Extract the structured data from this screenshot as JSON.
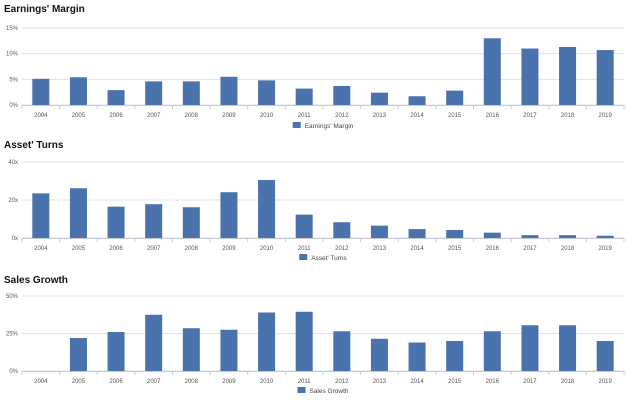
{
  "chart_data": [
    {
      "type": "bar",
      "title": "Earnings' Margin",
      "categories": [
        "2004",
        "2005",
        "2006",
        "2007",
        "2008",
        "2009",
        "2010",
        "2011",
        "2012",
        "2013",
        "2014",
        "2015",
        "2016",
        "2017",
        "2018",
        "2019"
      ],
      "series": [
        {
          "name": "Earnings' Margin",
          "values": [
            5.1,
            5.4,
            2.9,
            4.6,
            4.6,
            5.5,
            4.8,
            3.2,
            3.7,
            2.4,
            1.7,
            2.8,
            13.0,
            11.0,
            11.3,
            10.7
          ],
          "color": "#4a72ad"
        }
      ],
      "yticks": [
        0,
        5,
        10,
        15
      ],
      "ytick_labels": [
        "0%",
        "5%",
        "10%",
        "15%"
      ],
      "ylim": [
        0,
        15
      ],
      "grid": true,
      "legend_position": "bottom-center"
    },
    {
      "type": "bar",
      "title": "Asset' Turns",
      "categories": [
        "2004",
        "2005",
        "2006",
        "2007",
        "2008",
        "2009",
        "2010",
        "2011",
        "2012",
        "2013",
        "2014",
        "2015",
        "2016",
        "2017",
        "2018",
        "2019"
      ],
      "series": [
        {
          "name": "Asset' Turns",
          "values": [
            23.5,
            26.2,
            16.5,
            17.8,
            16.2,
            24.1,
            30.5,
            12.3,
            8.3,
            6.5,
            4.7,
            4.2,
            2.8,
            1.5,
            1.5,
            1.2
          ],
          "color": "#4a72ad"
        }
      ],
      "yticks": [
        0,
        20,
        40
      ],
      "ytick_labels": [
        "0x",
        "20x",
        "40x"
      ],
      "ylim": [
        0,
        40
      ],
      "grid": true,
      "legend_position": "bottom-center"
    },
    {
      "type": "bar",
      "title": "Sales Growth",
      "categories": [
        "2004",
        "2005",
        "2006",
        "2007",
        "2008",
        "2009",
        "2010",
        "2011",
        "2012",
        "2013",
        "2014",
        "2015",
        "2016",
        "2017",
        "2018",
        "2019"
      ],
      "series": [
        {
          "name": "Sales Growth",
          "values": [
            null,
            22.0,
            26.0,
            37.5,
            28.5,
            27.5,
            39.0,
            39.5,
            26.5,
            21.5,
            19.0,
            20.0,
            26.5,
            30.5,
            30.5,
            20.0
          ],
          "color": "#4a72ad"
        }
      ],
      "yticks": [
        0,
        25,
        50
      ],
      "ytick_labels": [
        "0%",
        "25%",
        "50%"
      ],
      "ylim": [
        0,
        50
      ],
      "grid": true,
      "legend_position": "bottom-center"
    }
  ]
}
